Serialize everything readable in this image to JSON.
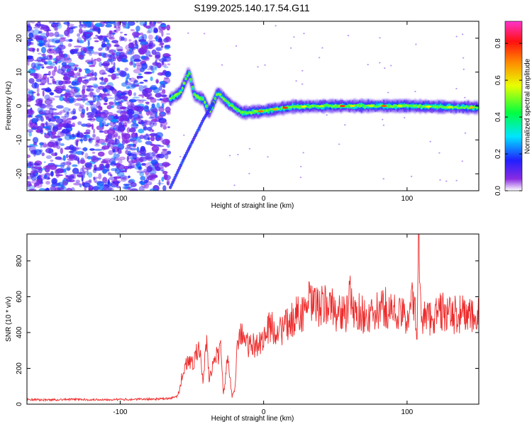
{
  "title": "S199.2025.140.17.54.G11",
  "colors": {
    "snr_line": "#ee2b2b",
    "frame": "#000000"
  },
  "chart_data": [
    {
      "type": "heatmap",
      "title": "S199.2025.140.17.54.G11",
      "xlabel": "Height of straight line (km)",
      "ylabel": "Frequency (Hz)",
      "xlim": [
        -165,
        150
      ],
      "ylim": [
        -25,
        25
      ],
      "xticks": [
        -100,
        0,
        100
      ],
      "xtick_labels": [
        "-100",
        "0",
        "100"
      ],
      "yticks": [
        -20,
        -10,
        0,
        10,
        20
      ],
      "ytick_labels": [
        "-20",
        "-10",
        "0",
        "10",
        "20"
      ],
      "colorbar": {
        "label": "Normalized spectral amplitude",
        "range": [
          0,
          0.92
        ],
        "ticks": [
          0.0,
          0.2,
          0.4,
          0.6,
          0.8
        ],
        "tick_labels": [
          "0.0",
          "0.2",
          "0.4",
          "0.6",
          "0.8"
        ],
        "colormap": "rainbow"
      },
      "noise_region": {
        "x_range": [
          -165,
          -66
        ],
        "typical_amplitude": [
          0.05,
          0.2
        ]
      },
      "ridge": [
        {
          "x": -65,
          "f": 2
        },
        {
          "x": -58,
          "f": 4
        },
        {
          "x": -52,
          "f": 10
        },
        {
          "x": -48,
          "f": 3
        },
        {
          "x": -42,
          "f": 2
        },
        {
          "x": -38,
          "f": -2
        },
        {
          "x": -32,
          "f": 4
        },
        {
          "x": -25,
          "f": 1
        },
        {
          "x": -15,
          "f": -2
        },
        {
          "x": 0,
          "f": -1.5
        },
        {
          "x": 20,
          "f": -0.2
        },
        {
          "x": 50,
          "f": 0
        },
        {
          "x": 80,
          "f": 0
        },
        {
          "x": 100,
          "f": 0
        },
        {
          "x": 150,
          "f": -0.5
        }
      ],
      "secondary_ridge": [
        {
          "x": -65,
          "f": -24
        },
        {
          "x": -55,
          "f": -15
        },
        {
          "x": -42,
          "f": -4
        },
        {
          "x": -35,
          "f": 1
        }
      ]
    },
    {
      "type": "line",
      "xlabel": "Height of straight line (km)",
      "ylabel": "SNR (10 * v/v)",
      "xlim": [
        -165,
        150
      ],
      "ylim": [
        0,
        950
      ],
      "xticks": [
        -100,
        0,
        100
      ],
      "xtick_labels": [
        "-100",
        "0",
        "100"
      ],
      "yticks": [
        0,
        200,
        400,
        600,
        800
      ],
      "ytick_labels": [
        "0",
        "200",
        "400",
        "600",
        "800"
      ],
      "series": [
        {
          "x": [
            -165,
            -160,
            -150,
            -140,
            -130,
            -120,
            -110,
            -100,
            -90,
            -80,
            -70,
            -65,
            -60,
            -55,
            -50,
            -45,
            -42,
            -40,
            -38,
            -35,
            -30,
            -28,
            -25,
            -22,
            -20,
            -18,
            -15,
            -10,
            -5,
            0,
            5,
            10,
            15,
            20,
            25,
            28,
            30,
            35,
            40,
            45,
            50,
            55,
            58,
            60,
            62,
            65,
            70,
            75,
            80,
            85,
            90,
            95,
            100,
            102,
            105,
            107,
            108,
            110,
            115,
            120,
            125,
            130,
            135,
            140,
            145,
            150
          ],
          "y": [
            28,
            25,
            24,
            26,
            27,
            25,
            26,
            26,
            27,
            28,
            30,
            32,
            45,
            220,
            230,
            310,
            120,
            360,
            140,
            240,
            300,
            60,
            250,
            40,
            100,
            390,
            380,
            320,
            330,
            370,
            440,
            400,
            430,
            470,
            520,
            500,
            570,
            550,
            540,
            560,
            520,
            510,
            500,
            610,
            510,
            520,
            500,
            480,
            520,
            540,
            520,
            500,
            480,
            600,
            540,
            410,
            920,
            500,
            480,
            500,
            520,
            490,
            500,
            510,
            480,
            490
          ]
        }
      ]
    }
  ]
}
